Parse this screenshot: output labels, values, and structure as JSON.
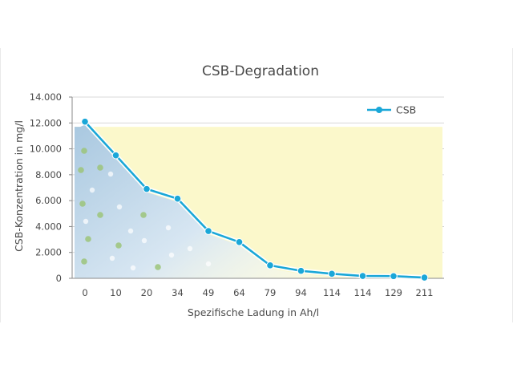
{
  "chart_data": {
    "type": "line",
    "title": "CSB-Degradation",
    "xlabel": "Spezifische Ladung in Ah/l",
    "ylabel": "CSB-Konzentration in mg/l",
    "ylim": [
      0,
      14000
    ],
    "yticks": [
      "0",
      "2.000",
      "4.000",
      "6.000",
      "8.000",
      "10.000",
      "12.000",
      "14.000"
    ],
    "categories": [
      "0",
      "10",
      "20",
      "34",
      "49",
      "64",
      "79",
      "94",
      "114",
      "114",
      "129",
      "211"
    ],
    "series": [
      {
        "name": "CSB",
        "values": [
          12100,
          9500,
          6900,
          6150,
          3650,
          2800,
          1000,
          580,
          350,
          180,
          170,
          60
        ],
        "color": "#1aa7d8"
      }
    ],
    "grid": true,
    "legend": "top-right",
    "colors": {
      "highlight_band": "#fbf8cb",
      "gradient_start": "#a9c8e0",
      "gradient_end": "#ffffff",
      "dots": "#9cc47a",
      "grid": "#cccccc",
      "axis": "#8a8a8a"
    }
  }
}
